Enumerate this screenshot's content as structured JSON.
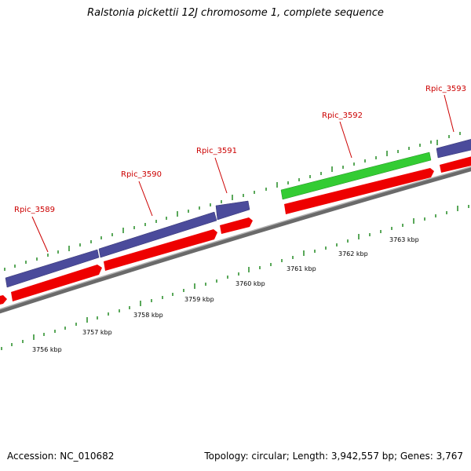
{
  "title": "Ralstonia pickettii 12J chromosome 1, complete sequence",
  "accession": "Accession: NC_010682",
  "summary": "Topology: circular; Length: 3,942,557 bp; Genes: 3,767",
  "colors": {
    "backbone": "#808080",
    "cds": "#ff0000",
    "gene_blue": "#4b4b9b",
    "gene_green": "#33cc33",
    "tick": "#228b22",
    "label": "#cc0000"
  },
  "genes": [
    {
      "label": "Rpic_3589"
    },
    {
      "label": "Rpic_3590"
    },
    {
      "label": "Rpic_3591"
    },
    {
      "label": "Rpic_3592"
    },
    {
      "label": "Rpic_3593"
    }
  ],
  "kbp_labels": [
    "3756 kbp",
    "3757 kbp",
    "3758 kbp",
    "3759 kbp",
    "3760 kbp",
    "3761 kbp",
    "3762 kbp",
    "3763 kbp"
  ]
}
